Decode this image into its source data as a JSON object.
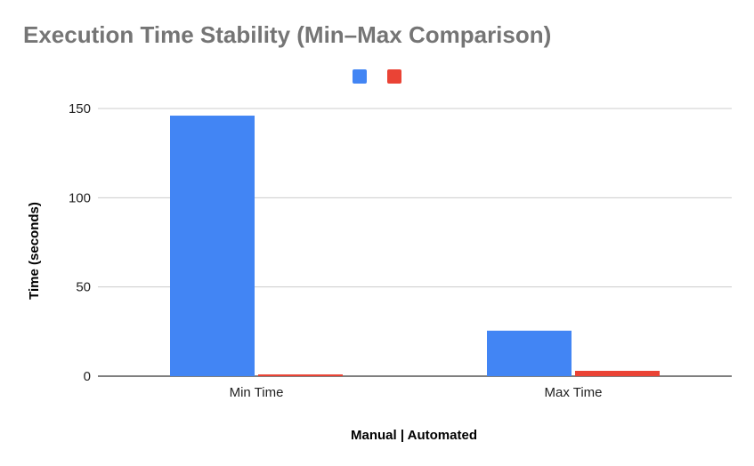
{
  "chart_data": {
    "type": "bar",
    "title": "Execution Time Stability (Min–Max Comparison)",
    "xlabel": "Manual | Automated",
    "ylabel": "Time (seconds)",
    "categories": [
      "Min Time",
      "Max Time"
    ],
    "series": [
      {
        "values": [
          146,
          25.5
        ],
        "color": "#4285F4"
      },
      {
        "values": [
          1,
          3
        ],
        "color": "#EA4335"
      }
    ],
    "ylim": [
      0,
      150
    ],
    "yticks": [
      0,
      50,
      100,
      150
    ],
    "grid": true,
    "legend": "top-center"
  }
}
